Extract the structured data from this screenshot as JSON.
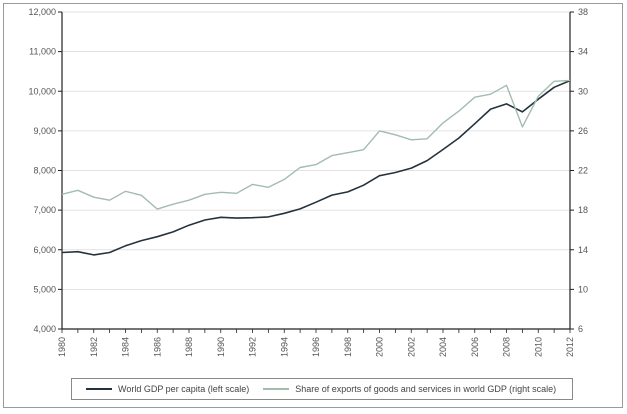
{
  "colors": {
    "gdp_line": "#24323d",
    "exports_line": "#a3bcae",
    "axis": "#222222",
    "grid": "#d9d9d9"
  },
  "chart_data": {
    "type": "line",
    "title": "",
    "xlabel": "",
    "x": [
      1980,
      1981,
      1982,
      1983,
      1984,
      1985,
      1986,
      1987,
      1988,
      1989,
      1990,
      1991,
      1992,
      1993,
      1994,
      1995,
      1996,
      1997,
      1998,
      1999,
      2000,
      2001,
      2002,
      2003,
      2004,
      2005,
      2006,
      2007,
      2008,
      2009,
      2010,
      2011,
      2012
    ],
    "x_tick_labels": [
      "1980",
      "1982",
      "1984",
      "1986",
      "1988",
      "1990",
      "1992",
      "1994",
      "1996",
      "1998",
      "2000",
      "2002",
      "2004",
      "2006",
      "2008",
      "2010",
      "2012"
    ],
    "left_axis": {
      "ylim": [
        4000,
        12000
      ],
      "tick_labels": [
        "4,000",
        "5,000",
        "6,000",
        "7,000",
        "8,000",
        "9,000",
        "10,000",
        "11,000",
        "12,000"
      ]
    },
    "right_axis": {
      "ylim": [
        6,
        38
      ],
      "tick_labels": [
        "6",
        "10",
        "14",
        "18",
        "22",
        "26",
        "30",
        "34",
        "38"
      ]
    },
    "grid": "horizontal",
    "legend_position": "bottom",
    "series": [
      {
        "name": "World GDP per capita (left scale)",
        "axis": "left",
        "values": [
          5930,
          5950,
          5870,
          5930,
          6100,
          6230,
          6330,
          6450,
          6620,
          6750,
          6820,
          6800,
          6810,
          6830,
          6920,
          7030,
          7200,
          7380,
          7460,
          7630,
          7870,
          7950,
          8060,
          8250,
          8530,
          8820,
          9180,
          9550,
          9680,
          9480,
          9800,
          10100,
          10270
        ]
      },
      {
        "name": "Share of exports of goods and services in world GDP (right scale)",
        "axis": "right",
        "values": [
          19.6,
          20.0,
          19.3,
          19.0,
          19.9,
          19.5,
          18.1,
          18.6,
          19.0,
          19.6,
          19.8,
          19.7,
          20.6,
          20.3,
          21.1,
          22.3,
          22.6,
          23.5,
          23.8,
          24.1,
          26.0,
          25.6,
          25.1,
          25.2,
          26.8,
          28.0,
          29.4,
          29.7,
          30.6,
          26.4,
          29.5,
          31.0,
          31.1
        ]
      }
    ]
  }
}
